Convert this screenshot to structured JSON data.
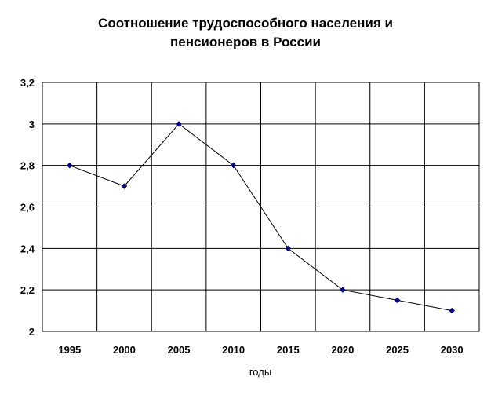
{
  "chart_data": {
    "type": "line",
    "title_lines": [
      "Соотношение трудоспособного населения и",
      "пенсионеров в России"
    ],
    "xlabel": "годы",
    "ylabel": "",
    "categories": [
      "1995",
      "2000",
      "2005",
      "2010",
      "2015",
      "2020",
      "2025",
      "2030"
    ],
    "series": [
      {
        "values": [
          2.8,
          2.7,
          3.0,
          2.8,
          2.4,
          2.2,
          2.15,
          2.1
        ],
        "color": "#000080",
        "line_color": "#000000",
        "marker": "diamond"
      }
    ],
    "ylim": [
      2,
      3.2
    ],
    "yticks": [
      2,
      2.2,
      2.4,
      2.6,
      2.8,
      3,
      3.2
    ],
    "ytick_labels": [
      "2",
      "2,2",
      "2,4",
      "2,6",
      "2,8",
      "3",
      "3,2"
    ],
    "grid": true,
    "legend": "none"
  }
}
